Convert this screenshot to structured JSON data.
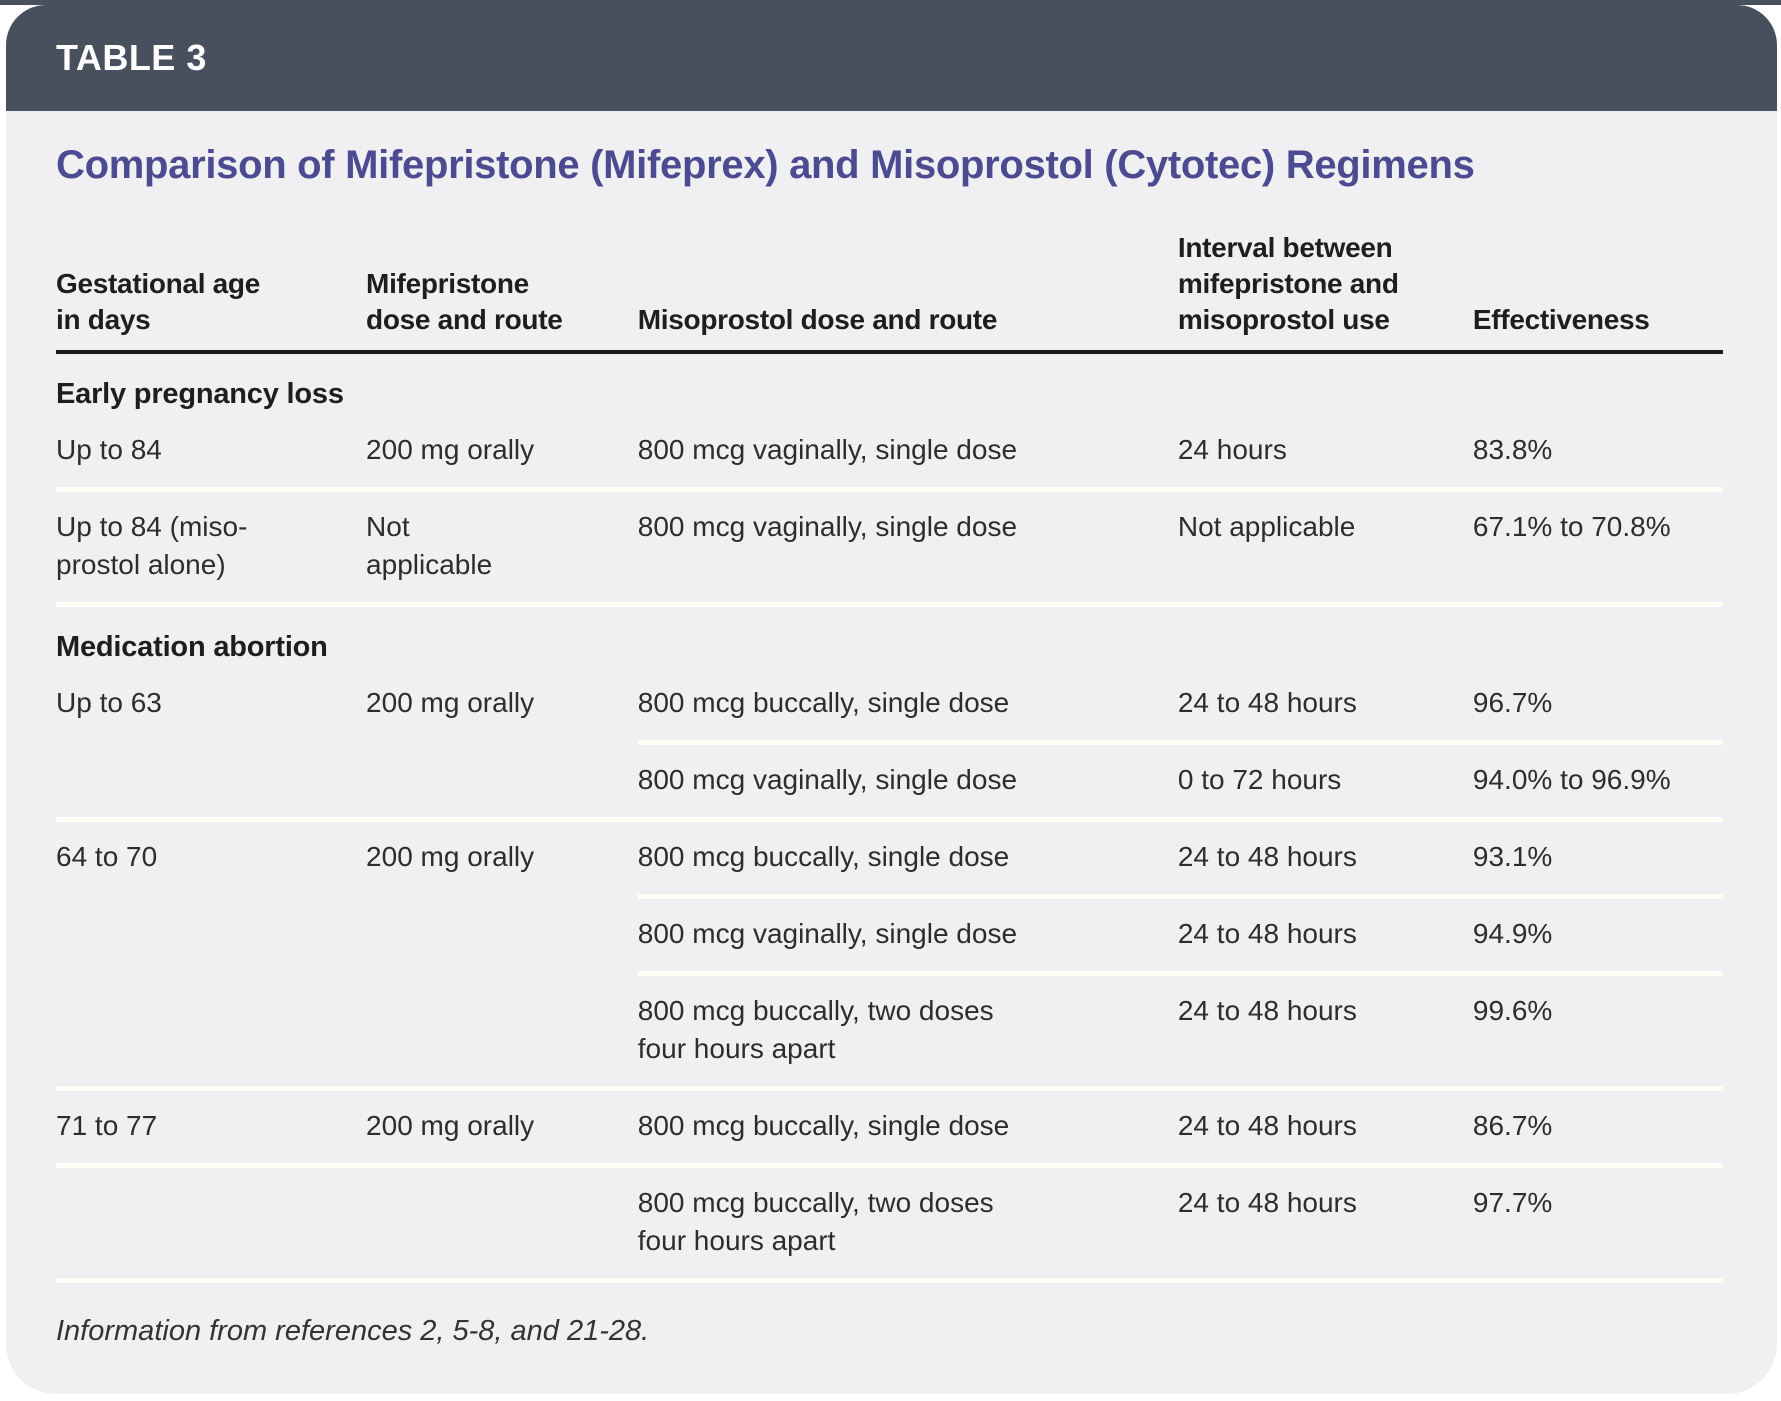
{
  "table_label": "TABLE 3",
  "title": "Comparison of Mifepristone (Mifeprex) and Misoprostol (Cytotec) Regimens",
  "columns": [
    {
      "label": "Gestational age\nin days"
    },
    {
      "label": "Mifepristone\ndose and route"
    },
    {
      "label": "Misoprostol dose and route"
    },
    {
      "label": "Interval between\nmifepristone and\nmisoprostol use"
    },
    {
      "label": "Effectiveness"
    }
  ],
  "sections": [
    {
      "header": "Early pregnancy loss",
      "rows": [
        {
          "gestational_age": "Up to 84",
          "mifepristone": "200 mg orally",
          "misoprostol": "800 mcg vaginally, single dose",
          "interval": "24 hours",
          "effectiveness": "83.8%"
        },
        {
          "gestational_age": "Up to 84 (miso-\nprostol alone)",
          "mifepristone": "Not\napplicable",
          "misoprostol": "800 mcg vaginally, single dose",
          "interval": "Not applicable",
          "effectiveness": "67.1% to 70.8%"
        }
      ]
    },
    {
      "header": "Medication abortion",
      "rows": [
        {
          "gestational_age": "Up to 63",
          "mifepristone": "200 mg orally",
          "misoprostol": "800 mcg buccally, single dose",
          "interval": "24 to 48 hours",
          "effectiveness": "96.7%"
        },
        {
          "gestational_age": "",
          "mifepristone": "",
          "misoprostol": "800 mcg vaginally, single dose",
          "interval": "0 to 72 hours",
          "effectiveness": "94.0% to 96.9%"
        },
        {
          "gestational_age": "64 to 70",
          "mifepristone": "200 mg orally",
          "misoprostol": "800 mcg buccally, single dose",
          "interval": "24 to 48 hours",
          "effectiveness": "93.1%"
        },
        {
          "gestational_age": "",
          "mifepristone": "",
          "misoprostol": "800 mcg vaginally, single dose",
          "interval": "24 to 48 hours",
          "effectiveness": "94.9%"
        },
        {
          "gestational_age": "",
          "mifepristone": "",
          "misoprostol": "800 mcg buccally, two doses\nfour hours apart",
          "interval": "24 to 48 hours",
          "effectiveness": "99.6%"
        },
        {
          "gestational_age": "71 to 77",
          "mifepristone": "200 mg orally",
          "misoprostol": "800 mcg buccally, single dose",
          "interval": "24 to 48 hours",
          "effectiveness": "86.7%"
        },
        {
          "gestational_age": "",
          "mifepristone": "",
          "misoprostol": "800 mcg buccally, two doses\nfour hours apart",
          "interval": "24 to 48 hours",
          "effectiveness": "97.7%"
        }
      ]
    }
  ],
  "footnote": "Information from references 2, 5-8, and 21-28.",
  "colors": {
    "header_bar": "#48505e",
    "body_background": "#f0f0f2",
    "title_purple": "#4c4a90",
    "text": "#2d2d2d",
    "header_rule": "#191919",
    "row_divider": "#fdfdf6",
    "page_background": "#ffffff"
  }
}
